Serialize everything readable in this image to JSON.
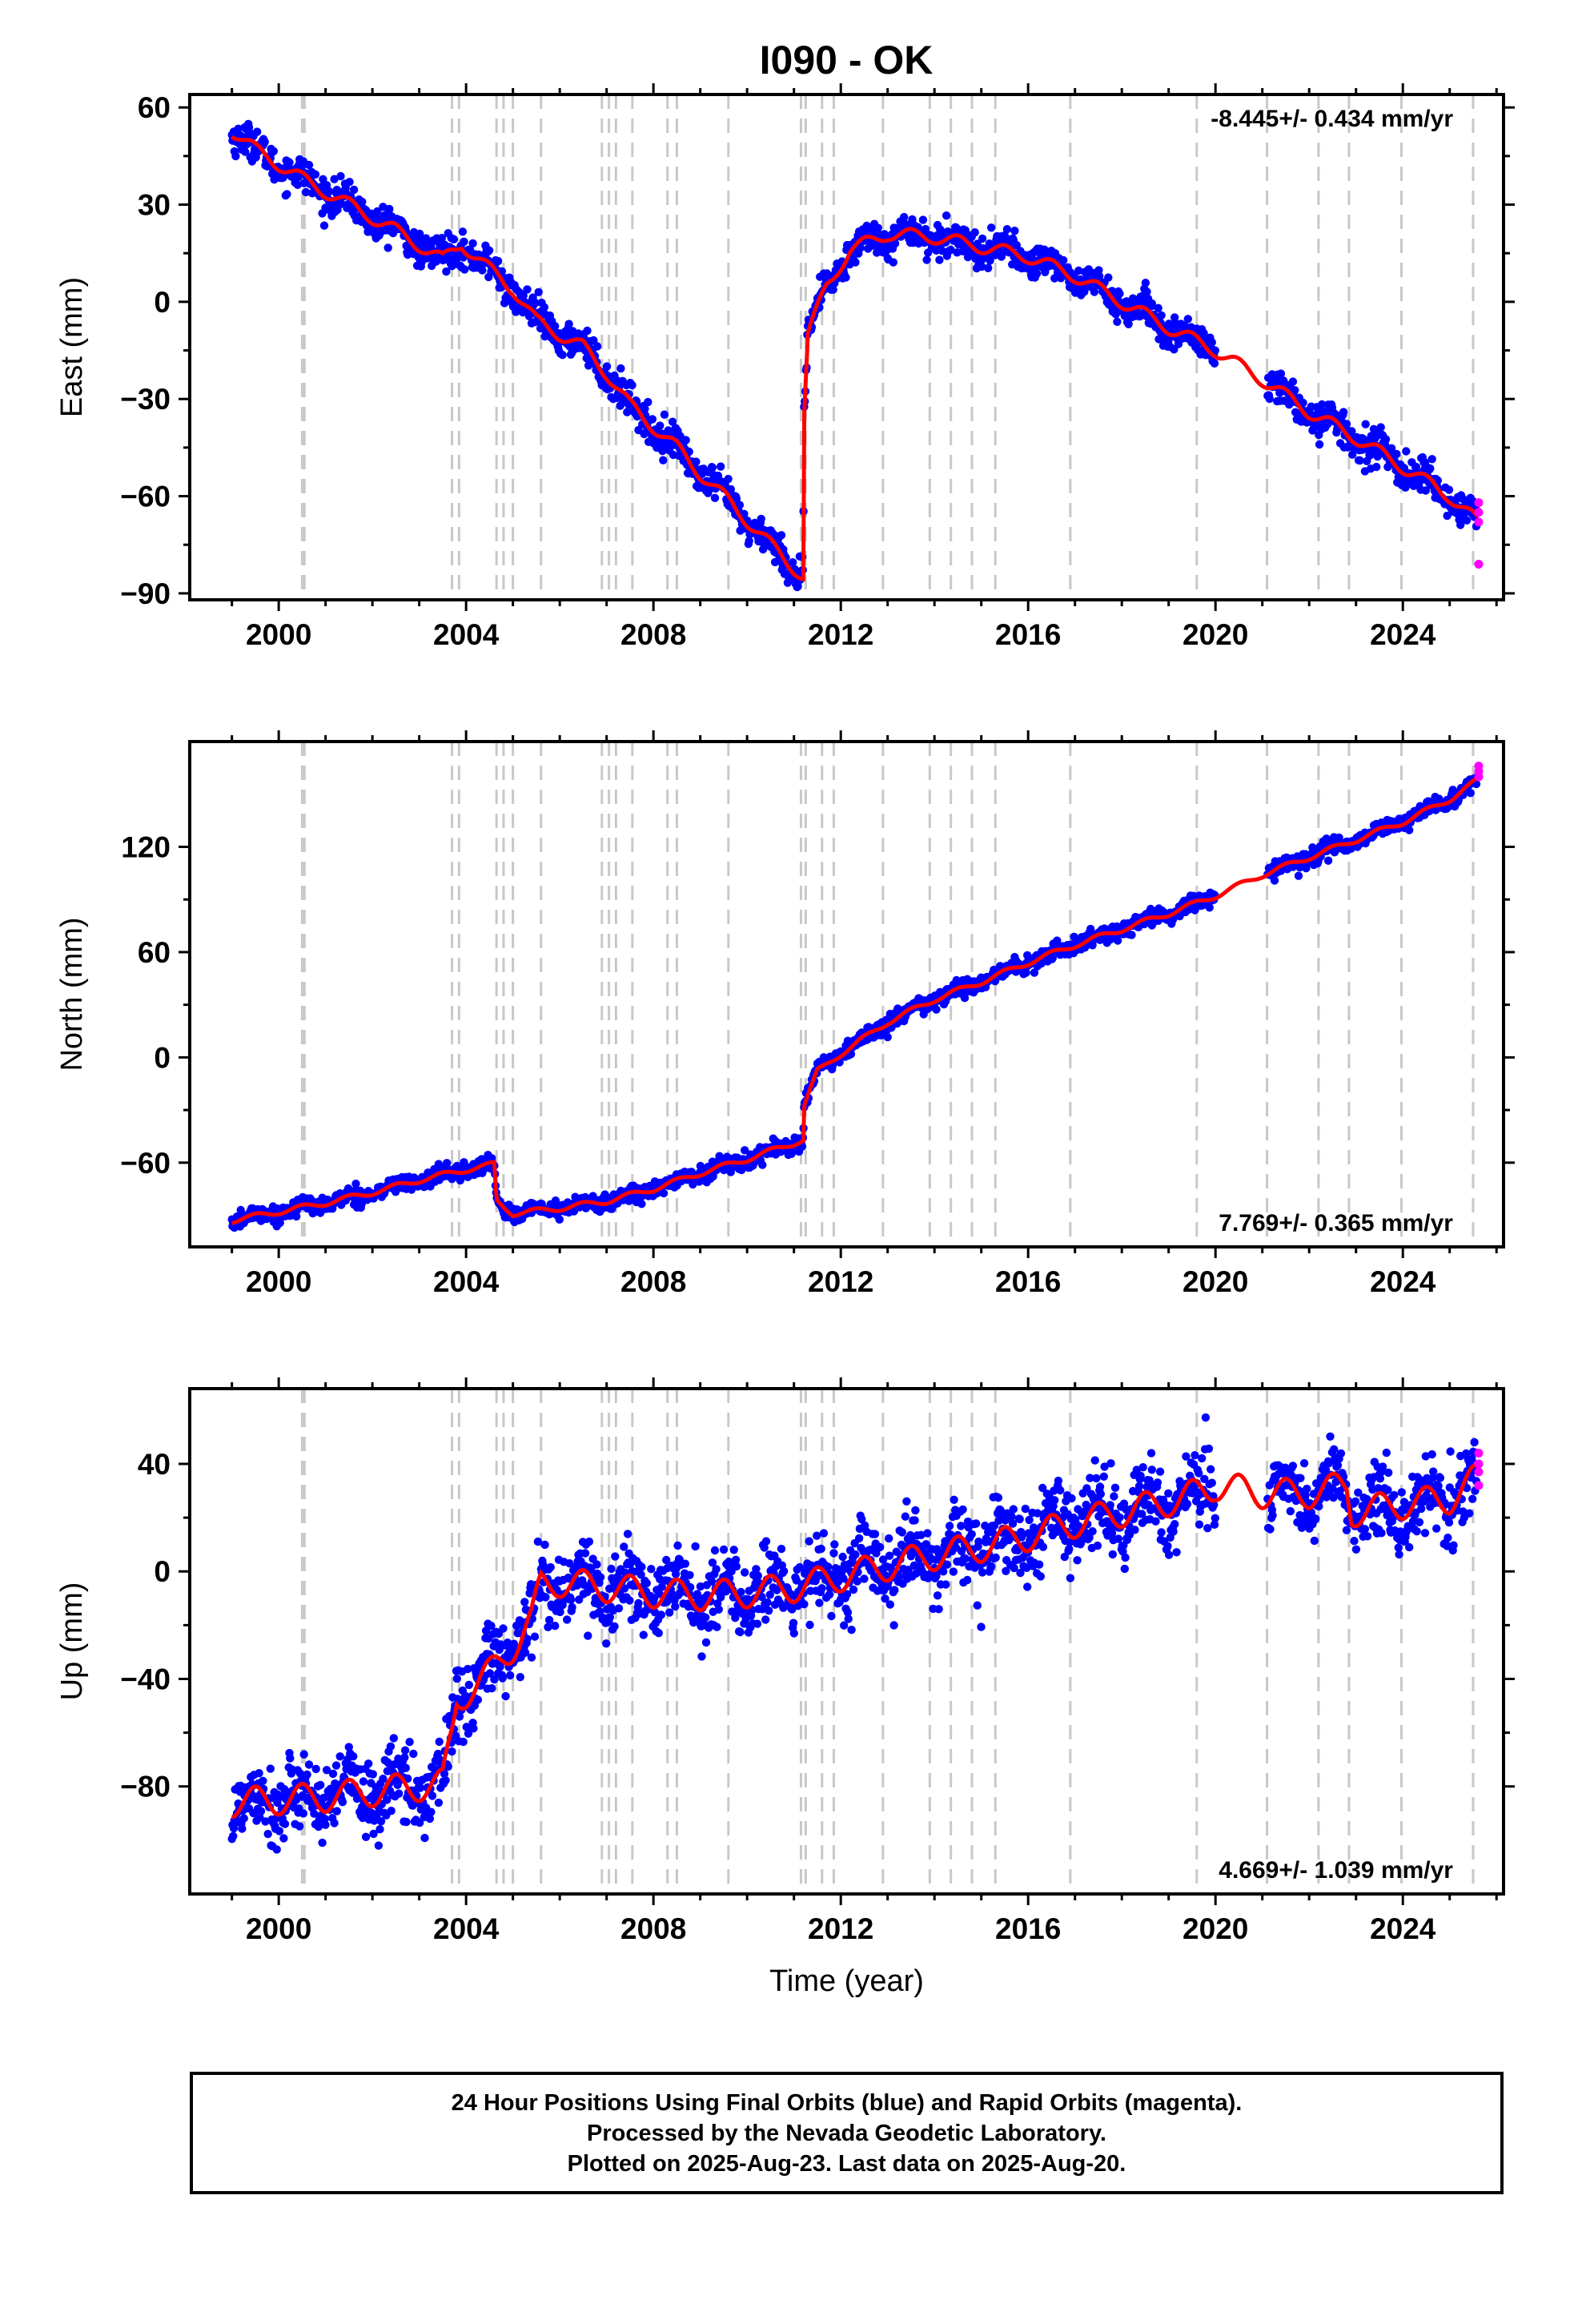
{
  "title": "I090 - OK",
  "colors": {
    "final": "#0000ff",
    "rapid": "#ff00ff",
    "model": "#ff0000",
    "event": "#c8c8c8"
  },
  "caption": {
    "line1": "24 Hour Positions Using Final Orbits (blue) and Rapid Orbits (magenta).",
    "line2": "Processed by the Nevada Geodetic Laboratory.",
    "line3": "Plotted on 2025-Aug-23. Last data on 2025-Aug-20."
  },
  "chart_data": [
    {
      "type": "scatter",
      "ylabel": "East (mm)",
      "xlabel": "",
      "rate": "-8.445+/- 0.434 mm/yr",
      "rate_position": "top-right",
      "xlim": [
        1998.1,
        2026.15
      ],
      "ylim": [
        -92,
        64
      ],
      "xticks": [
        2000,
        2004,
        2008,
        2012,
        2016,
        2020,
        2024
      ],
      "yticks": [
        -90,
        -60,
        -30,
        0,
        30,
        60
      ],
      "ytick_labels": [
        "−90",
        "−60",
        "−30",
        "0",
        "30",
        "60"
      ],
      "noise": 2.5,
      "seasonal": 2.0,
      "model": [
        [
          1999.0,
          53
        ],
        [
          1999.5,
          47
        ],
        [
          2000.5,
          38
        ],
        [
          2001.5,
          30
        ],
        [
          2002.5,
          22
        ],
        [
          2003.5,
          13
        ],
        [
          2003.9,
          18
        ],
        [
          2004.5,
          10
        ],
        [
          2005.0,
          4
        ],
        [
          2005.5,
          -6
        ],
        [
          2006.5,
          -14
        ],
        [
          2007.0,
          -22
        ],
        [
          2007.5,
          -32
        ],
        [
          2008.5,
          -45
        ],
        [
          2009.0,
          -53
        ],
        [
          2009.5,
          -60
        ],
        [
          2010.5,
          -75
        ],
        [
          2011.2,
          -85
        ],
        [
          2011.21,
          -37
        ],
        [
          2011.3,
          -10
        ],
        [
          2011.7,
          5
        ],
        [
          2012.2,
          16
        ],
        [
          2013.0,
          21
        ],
        [
          2014.0,
          20
        ],
        [
          2015.0,
          17
        ],
        [
          2016.0,
          14
        ],
        [
          2017.0,
          8
        ],
        [
          2018.0,
          0
        ],
        [
          2019.0,
          -8
        ],
        [
          2020.0,
          -15
        ],
        [
          2021.0,
          -24
        ],
        [
          2022.0,
          -34
        ],
        [
          2023.0,
          -42
        ],
        [
          2024.0,
          -51
        ],
        [
          2025.0,
          -60
        ],
        [
          2025.6,
          -68
        ]
      ],
      "gaps": [
        [
          2020.0,
          2021.1
        ]
      ],
      "rapid": [
        [
          2025.62,
          -62
        ],
        [
          2025.62,
          -65
        ],
        [
          2025.62,
          -68
        ],
        [
          2025.62,
          -81
        ]
      ],
      "events": [
        2000.5,
        2000.55,
        2003.7,
        2003.85,
        2004.65,
        2004.8,
        2005.0,
        2005.6,
        2006.9,
        2007.05,
        2007.2,
        2007.55,
        2008.3,
        2008.5,
        2009.6,
        2011.15,
        2011.25,
        2011.6,
        2011.85,
        2012.9,
        2013.9,
        2014.35,
        2014.8,
        2015.3,
        2016.9,
        2019.6,
        2021.1,
        2022.2,
        2022.85,
        2023.97,
        2025.5
      ]
    },
    {
      "type": "scatter",
      "ylabel": "North (mm)",
      "xlabel": "",
      "rate": "7.769+/- 0.365 mm/yr",
      "rate_position": "bottom-right",
      "xlim": [
        1998.1,
        2026.15
      ],
      "ylim": [
        -108,
        180
      ],
      "xticks": [
        2000,
        2004,
        2008,
        2012,
        2016,
        2020,
        2024
      ],
      "yticks": [
        -60,
        0,
        60,
        120
      ],
      "ytick_labels": [
        "−60",
        "0",
        "60",
        "120"
      ],
      "noise": 2.2,
      "seasonal": 1.5,
      "model": [
        [
          1999.0,
          -93
        ],
        [
          2000.0,
          -88
        ],
        [
          2001.0,
          -83
        ],
        [
          2002.0,
          -77
        ],
        [
          2003.0,
          -70
        ],
        [
          2004.0,
          -64
        ],
        [
          2004.6,
          -61
        ],
        [
          2004.65,
          -82
        ],
        [
          2005.0,
          -89
        ],
        [
          2006.0,
          -86
        ],
        [
          2007.0,
          -82
        ],
        [
          2008.0,
          -75
        ],
        [
          2009.0,
          -66
        ],
        [
          2010.0,
          -58
        ],
        [
          2011.2,
          -47
        ],
        [
          2011.21,
          -28
        ],
        [
          2011.5,
          -8
        ],
        [
          2012.0,
          2
        ],
        [
          2013.0,
          20
        ],
        [
          2014.0,
          33
        ],
        [
          2015.0,
          43
        ],
        [
          2016.0,
          54
        ],
        [
          2017.0,
          64
        ],
        [
          2018.0,
          73
        ],
        [
          2019.0,
          82
        ],
        [
          2020.0,
          92
        ],
        [
          2021.0,
          104
        ],
        [
          2022.0,
          114
        ],
        [
          2023.0,
          124
        ],
        [
          2024.0,
          134
        ],
        [
          2025.0,
          147
        ],
        [
          2025.6,
          158
        ]
      ],
      "gaps": [
        [
          2020.0,
          2021.1
        ]
      ],
      "rapid": [
        [
          2025.62,
          160
        ],
        [
          2025.62,
          163
        ],
        [
          2025.62,
          166
        ]
      ],
      "events": [
        2000.5,
        2000.55,
        2003.7,
        2003.85,
        2004.65,
        2004.8,
        2005.0,
        2005.6,
        2006.9,
        2007.05,
        2007.2,
        2007.55,
        2008.3,
        2008.5,
        2009.6,
        2011.15,
        2011.25,
        2011.6,
        2011.85,
        2012.9,
        2013.9,
        2014.35,
        2014.8,
        2015.3,
        2016.9,
        2019.6,
        2021.1,
        2022.2,
        2022.85,
        2023.97,
        2025.5
      ]
    },
    {
      "type": "scatter",
      "ylabel": "Up (mm)",
      "xlabel": "Time (year)",
      "rate": "4.669+/- 1.039 mm/yr",
      "rate_position": "bottom-right",
      "xlim": [
        1998.1,
        2026.15
      ],
      "ylim": [
        -120,
        68
      ],
      "xticks": [
        2000,
        2004,
        2008,
        2012,
        2016,
        2020,
        2024
      ],
      "yticks": [
        -80,
        -40,
        0,
        40
      ],
      "ytick_labels": [
        "−80",
        "−40",
        "0",
        "40"
      ],
      "noise": 7.0,
      "seasonal": 5.5,
      "model": [
        [
          1999.0,
          -86
        ],
        [
          2000.0,
          -85
        ],
        [
          2001.0,
          -84
        ],
        [
          2002.0,
          -82
        ],
        [
          2003.0,
          -80
        ],
        [
          2003.5,
          -79
        ],
        [
          2003.7,
          -60
        ],
        [
          2003.8,
          -48
        ],
        [
          2004.5,
          -38
        ],
        [
          2005.0,
          -28
        ],
        [
          2005.4,
          -18
        ],
        [
          2005.6,
          -5
        ],
        [
          2006.0,
          -4
        ],
        [
          2007.0,
          -6
        ],
        [
          2008.0,
          -8
        ],
        [
          2009.0,
          -9
        ],
        [
          2010.0,
          -8
        ],
        [
          2011.0,
          -6
        ],
        [
          2012.0,
          -2
        ],
        [
          2013.0,
          2
        ],
        [
          2014.0,
          6
        ],
        [
          2015.0,
          9
        ],
        [
          2016.0,
          13
        ],
        [
          2017.0,
          18
        ],
        [
          2018.0,
          22
        ],
        [
          2019.0,
          26
        ],
        [
          2019.8,
          30
        ],
        [
          2020.0,
          32
        ],
        [
          2021.0,
          29
        ],
        [
          2022.0,
          29
        ],
        [
          2022.8,
          32
        ],
        [
          2022.9,
          22
        ],
        [
          2024.0,
          25
        ],
        [
          2025.0,
          27
        ],
        [
          2025.6,
          35
        ]
      ],
      "gaps": [
        [
          2020.0,
          2021.1
        ]
      ],
      "rapid": [
        [
          2025.62,
          32
        ],
        [
          2025.62,
          37
        ],
        [
          2025.62,
          40
        ],
        [
          2025.62,
          44
        ]
      ],
      "events": [
        2000.5,
        2000.55,
        2003.7,
        2003.85,
        2004.65,
        2004.8,
        2005.0,
        2005.6,
        2006.9,
        2007.05,
        2007.2,
        2007.55,
        2008.3,
        2008.5,
        2009.6,
        2011.15,
        2011.25,
        2011.6,
        2011.85,
        2012.9,
        2013.9,
        2014.35,
        2014.8,
        2015.3,
        2016.9,
        2019.6,
        2021.1,
        2022.2,
        2022.85,
        2023.97,
        2025.5
      ]
    }
  ]
}
